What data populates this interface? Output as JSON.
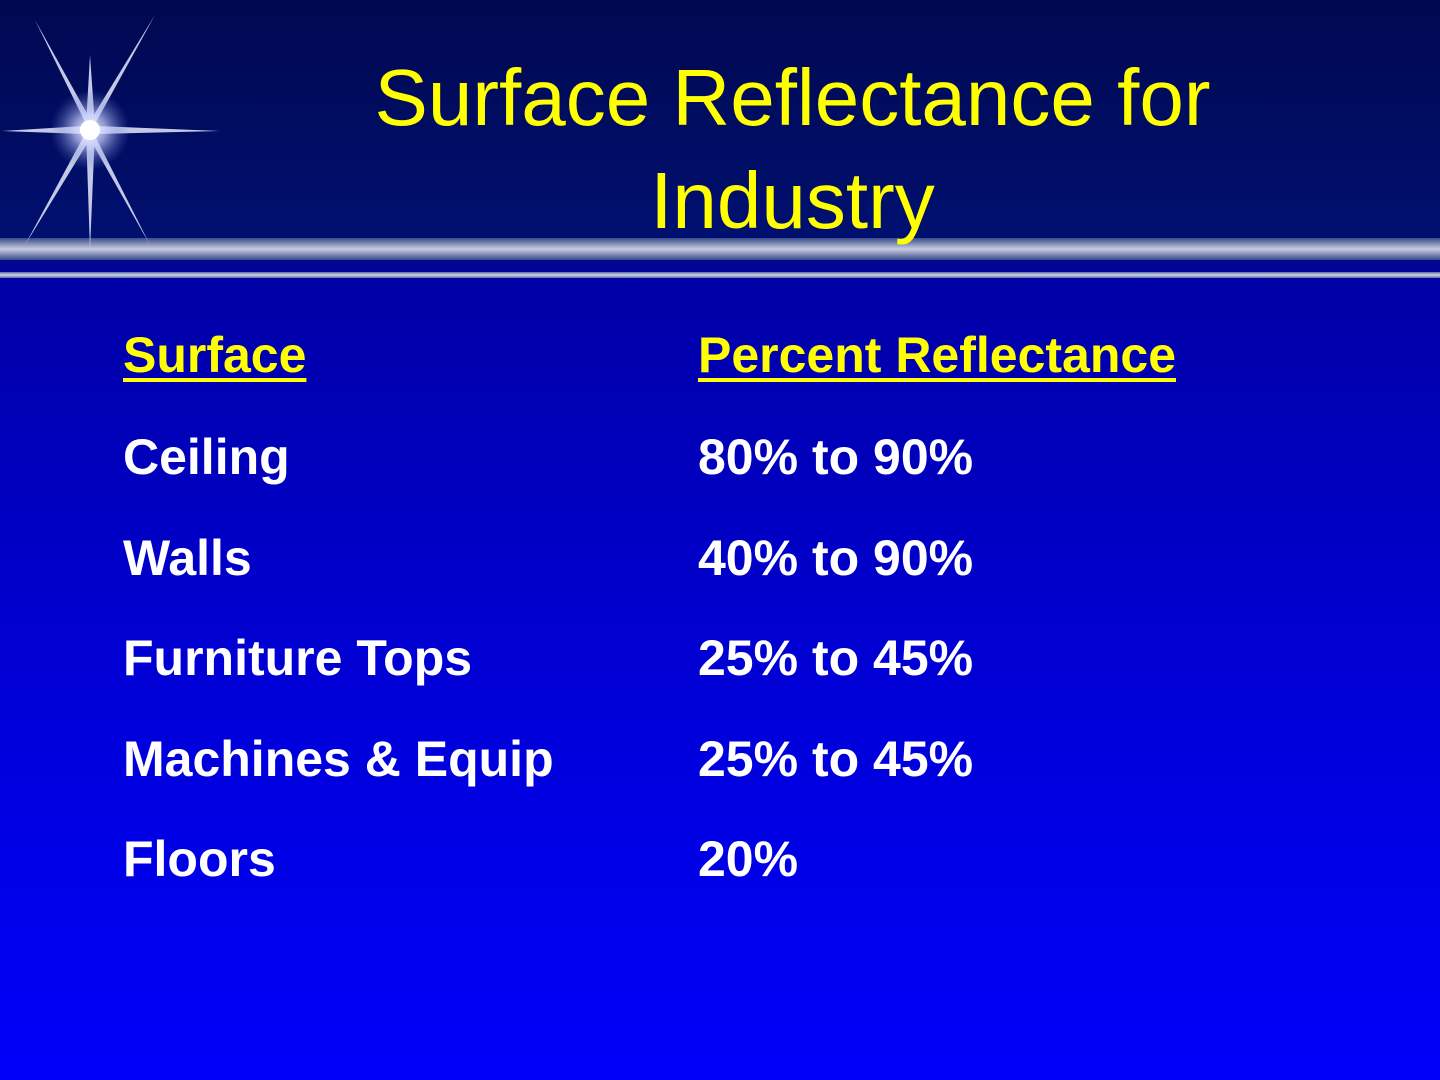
{
  "title": "Surface Reflectance for Industry",
  "table": {
    "header": [
      "Surface",
      "Percent Reflectance"
    ],
    "rows": [
      [
        "Ceiling",
        "80% to 90%"
      ],
      [
        "Walls",
        "40% to 90%"
      ],
      [
        "Furniture Tops",
        "25% to 45%"
      ],
      [
        "Machines & Equip",
        "25% to 45%"
      ],
      [
        "Floors",
        "20%"
      ]
    ]
  }
}
